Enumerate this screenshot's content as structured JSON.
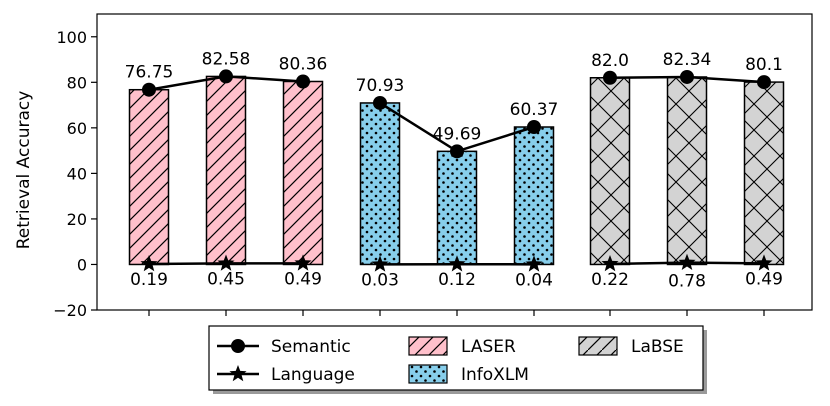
{
  "chart_data": {
    "type": "bar",
    "ylabel": "Retrieval Accuracy",
    "ylim": [
      -20,
      110
    ],
    "yticks": [
      -20,
      0,
      20,
      40,
      60,
      80,
      100
    ],
    "groups": [
      {
        "model": "LASER",
        "color": "#ffc0cb",
        "hatch": "diagonal",
        "semantic": [
          76.75,
          82.58,
          80.36
        ],
        "semantic_labels": [
          "76.75",
          "82.58",
          "80.36"
        ],
        "language": [
          0.19,
          0.45,
          0.49
        ],
        "language_labels": [
          "0.19",
          "0.45",
          "0.49"
        ]
      },
      {
        "model": "InfoXLM",
        "color": "#87ceeb",
        "hatch": "dots",
        "semantic": [
          70.93,
          49.69,
          60.37
        ],
        "semantic_labels": [
          "70.93",
          "49.69",
          "60.37"
        ],
        "language": [
          0.03,
          0.12,
          0.04
        ],
        "language_labels": [
          "0.03",
          "0.12",
          "0.04"
        ]
      },
      {
        "model": "LaBSE",
        "color": "#d3d3d3",
        "hatch": "cross",
        "semantic": [
          82.0,
          82.34,
          80.1
        ],
        "semantic_labels": [
          "82.0",
          "82.34",
          "80.1"
        ],
        "language": [
          0.22,
          0.78,
          0.49
        ],
        "language_labels": [
          "0.22",
          "0.78",
          "0.49"
        ]
      }
    ],
    "legend": {
      "placement": "bottom-center",
      "entries": [
        {
          "label": "Semantic",
          "kind": "line-circle"
        },
        {
          "label": "Language",
          "kind": "line-star"
        },
        {
          "label": "LASER",
          "kind": "patch",
          "group": 0
        },
        {
          "label": "InfoXLM",
          "kind": "patch",
          "group": 1
        },
        {
          "label": "LaBSE",
          "kind": "patch",
          "group": 2
        }
      ]
    }
  }
}
